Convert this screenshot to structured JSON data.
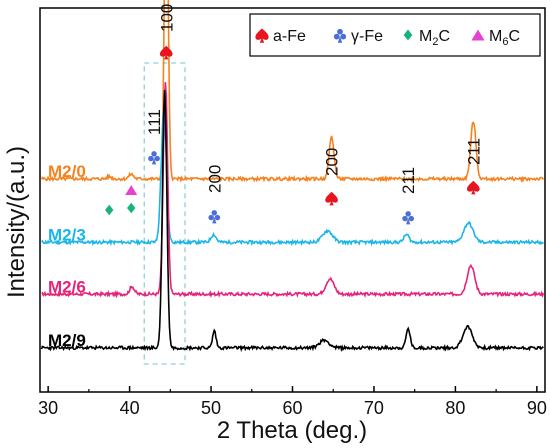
{
  "chart_data": {
    "type": "line",
    "xlabel": "2 Theta (deg.)",
    "ylabel": "Intensity/(a.u.)",
    "xlim": [
      29,
      91
    ],
    "x_ticks": [
      30,
      40,
      50,
      60,
      70,
      80,
      90
    ],
    "y_ticks_shown": false,
    "grid": false,
    "legend_position": "top-right",
    "legend": [
      {
        "key": "afe",
        "symbol": "spade",
        "label": "a-Fe",
        "color": "#e8141e"
      },
      {
        "key": "gfe",
        "symbol": "club",
        "label": "γ-Fe",
        "color": "#4a6fd8"
      },
      {
        "key": "m2c",
        "symbol": "diamond",
        "label_main": "M",
        "label_sub": "2",
        "label_tail": "C",
        "color": "#19b37a"
      },
      {
        "key": "m6c",
        "symbol": "triangle",
        "label_main": "M",
        "label_sub": "6",
        "label_tail": "C",
        "color": "#e642d0"
      }
    ],
    "series": [
      {
        "name": "M2/0",
        "color": "#f5821e",
        "baseline": 0.555,
        "noise_seed": 5,
        "peaks": [
          [
            37.5,
            0.006,
            0.4
          ],
          [
            40.2,
            0.012,
            0.4
          ],
          [
            44.5,
            0.86,
            0.32
          ],
          [
            64.8,
            0.11,
            0.42
          ],
          [
            82.2,
            0.15,
            0.45
          ]
        ]
      },
      {
        "name": "M2/3",
        "color": "#1ab6e8",
        "baseline": 0.39,
        "noise_seed": 11,
        "peaks": [
          [
            44.2,
            0.34,
            0.45
          ],
          [
            50.3,
            0.02,
            0.45
          ],
          [
            64.3,
            0.03,
            0.85
          ],
          [
            74.0,
            0.02,
            0.45
          ],
          [
            81.6,
            0.05,
            0.8
          ]
        ]
      },
      {
        "name": "M2/6",
        "color": "#e6247a",
        "baseline": 0.255,
        "noise_seed": 17,
        "peaks": [
          [
            40.3,
            0.02,
            0.4
          ],
          [
            44.4,
            0.55,
            0.38
          ],
          [
            64.6,
            0.04,
            0.7
          ],
          [
            81.9,
            0.075,
            0.65
          ]
        ]
      },
      {
        "name": "M2/9",
        "color": "#000000",
        "baseline": 0.115,
        "noise_seed": 23,
        "peaks": [
          [
            44.3,
            0.67,
            0.38
          ],
          [
            50.4,
            0.045,
            0.3
          ],
          [
            63.9,
            0.02,
            0.85
          ],
          [
            74.2,
            0.05,
            0.35
          ],
          [
            81.5,
            0.055,
            0.8
          ]
        ]
      }
    ],
    "annotations": [
      {
        "text": "100",
        "x": 44.5,
        "marker": "spade",
        "color": "#e8141e"
      },
      {
        "text": "111",
        "x": 43.0,
        "marker": "club",
        "color": "#4a6fd8"
      },
      {
        "text": "200",
        "x": 50.4,
        "marker": "club",
        "color": "#4a6fd8"
      },
      {
        "text": "200",
        "x": 64.8,
        "marker": "spade",
        "color": "#e8141e"
      },
      {
        "text": "211",
        "x": 74.2,
        "marker": "club",
        "color": "#4a6fd8"
      },
      {
        "text": "211",
        "x": 82.2,
        "marker": "spade",
        "color": "#e8141e"
      },
      {
        "text": "",
        "x": 37.5,
        "marker": "diamond",
        "color": "#19b37a"
      },
      {
        "text": "",
        "x": 40.2,
        "marker": "diamond",
        "color": "#19b37a"
      },
      {
        "text": "",
        "x": 40.2,
        "marker": "triangle",
        "color": "#e642d0"
      }
    ],
    "highlight_region": [
      41.8,
      46.8
    ],
    "highlight_color": "#8fd0d6"
  }
}
